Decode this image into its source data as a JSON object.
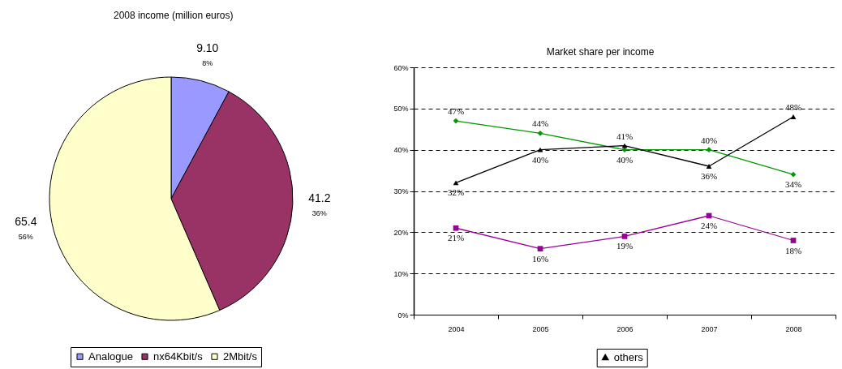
{
  "chart_data": [
    {
      "type": "pie",
      "title": "2008 income (million euros)",
      "categories": [
        "Analogue",
        "nx64Kbit/s",
        "2Mbit/s"
      ],
      "values": [
        9.1,
        41.2,
        65.4
      ],
      "value_labels": [
        "9.10",
        "41.2",
        "65.4"
      ],
      "colors": [
        "#9999ff",
        "#993366",
        "#ffffcc"
      ],
      "annotations": [
        "8%",
        "36%",
        "56%"
      ],
      "legend": "bottom"
    },
    {
      "type": "line",
      "title": "Market share per income",
      "categories": [
        "2004",
        "2005",
        "2006",
        "2007",
        "2008"
      ],
      "series": [
        {
          "color": "#009900",
          "marker": "diamond",
          "values": [
            47,
            44,
            40,
            40,
            34
          ],
          "value_labels": [
            "47%",
            "44%",
            "40%",
            "40%",
            "34%"
          ]
        },
        {
          "name": "others",
          "color": "#000000",
          "marker": "triangle",
          "values": [
            32,
            40,
            41,
            36,
            48
          ],
          "value_labels": [
            "32%",
            "40%",
            "41%",
            "36%",
            "48%"
          ]
        },
        {
          "color": "#990099",
          "marker": "square",
          "values": [
            21,
            16,
            19,
            24,
            18
          ],
          "value_labels": [
            "21%",
            "16%",
            "19%",
            "24%",
            "18%"
          ]
        }
      ],
      "ylim": [
        0,
        60
      ],
      "yticks": [
        {
          "value": 0,
          "label": "0%"
        },
        {
          "value": 10,
          "label": "10%"
        },
        {
          "value": 20,
          "label": "20%"
        },
        {
          "value": 30,
          "label": "30%"
        },
        {
          "value": 40,
          "label": "40%"
        },
        {
          "value": 50,
          "label": "50%"
        },
        {
          "value": 60,
          "label": "60%"
        }
      ],
      "grid": "y",
      "legend": "bottom"
    }
  ]
}
